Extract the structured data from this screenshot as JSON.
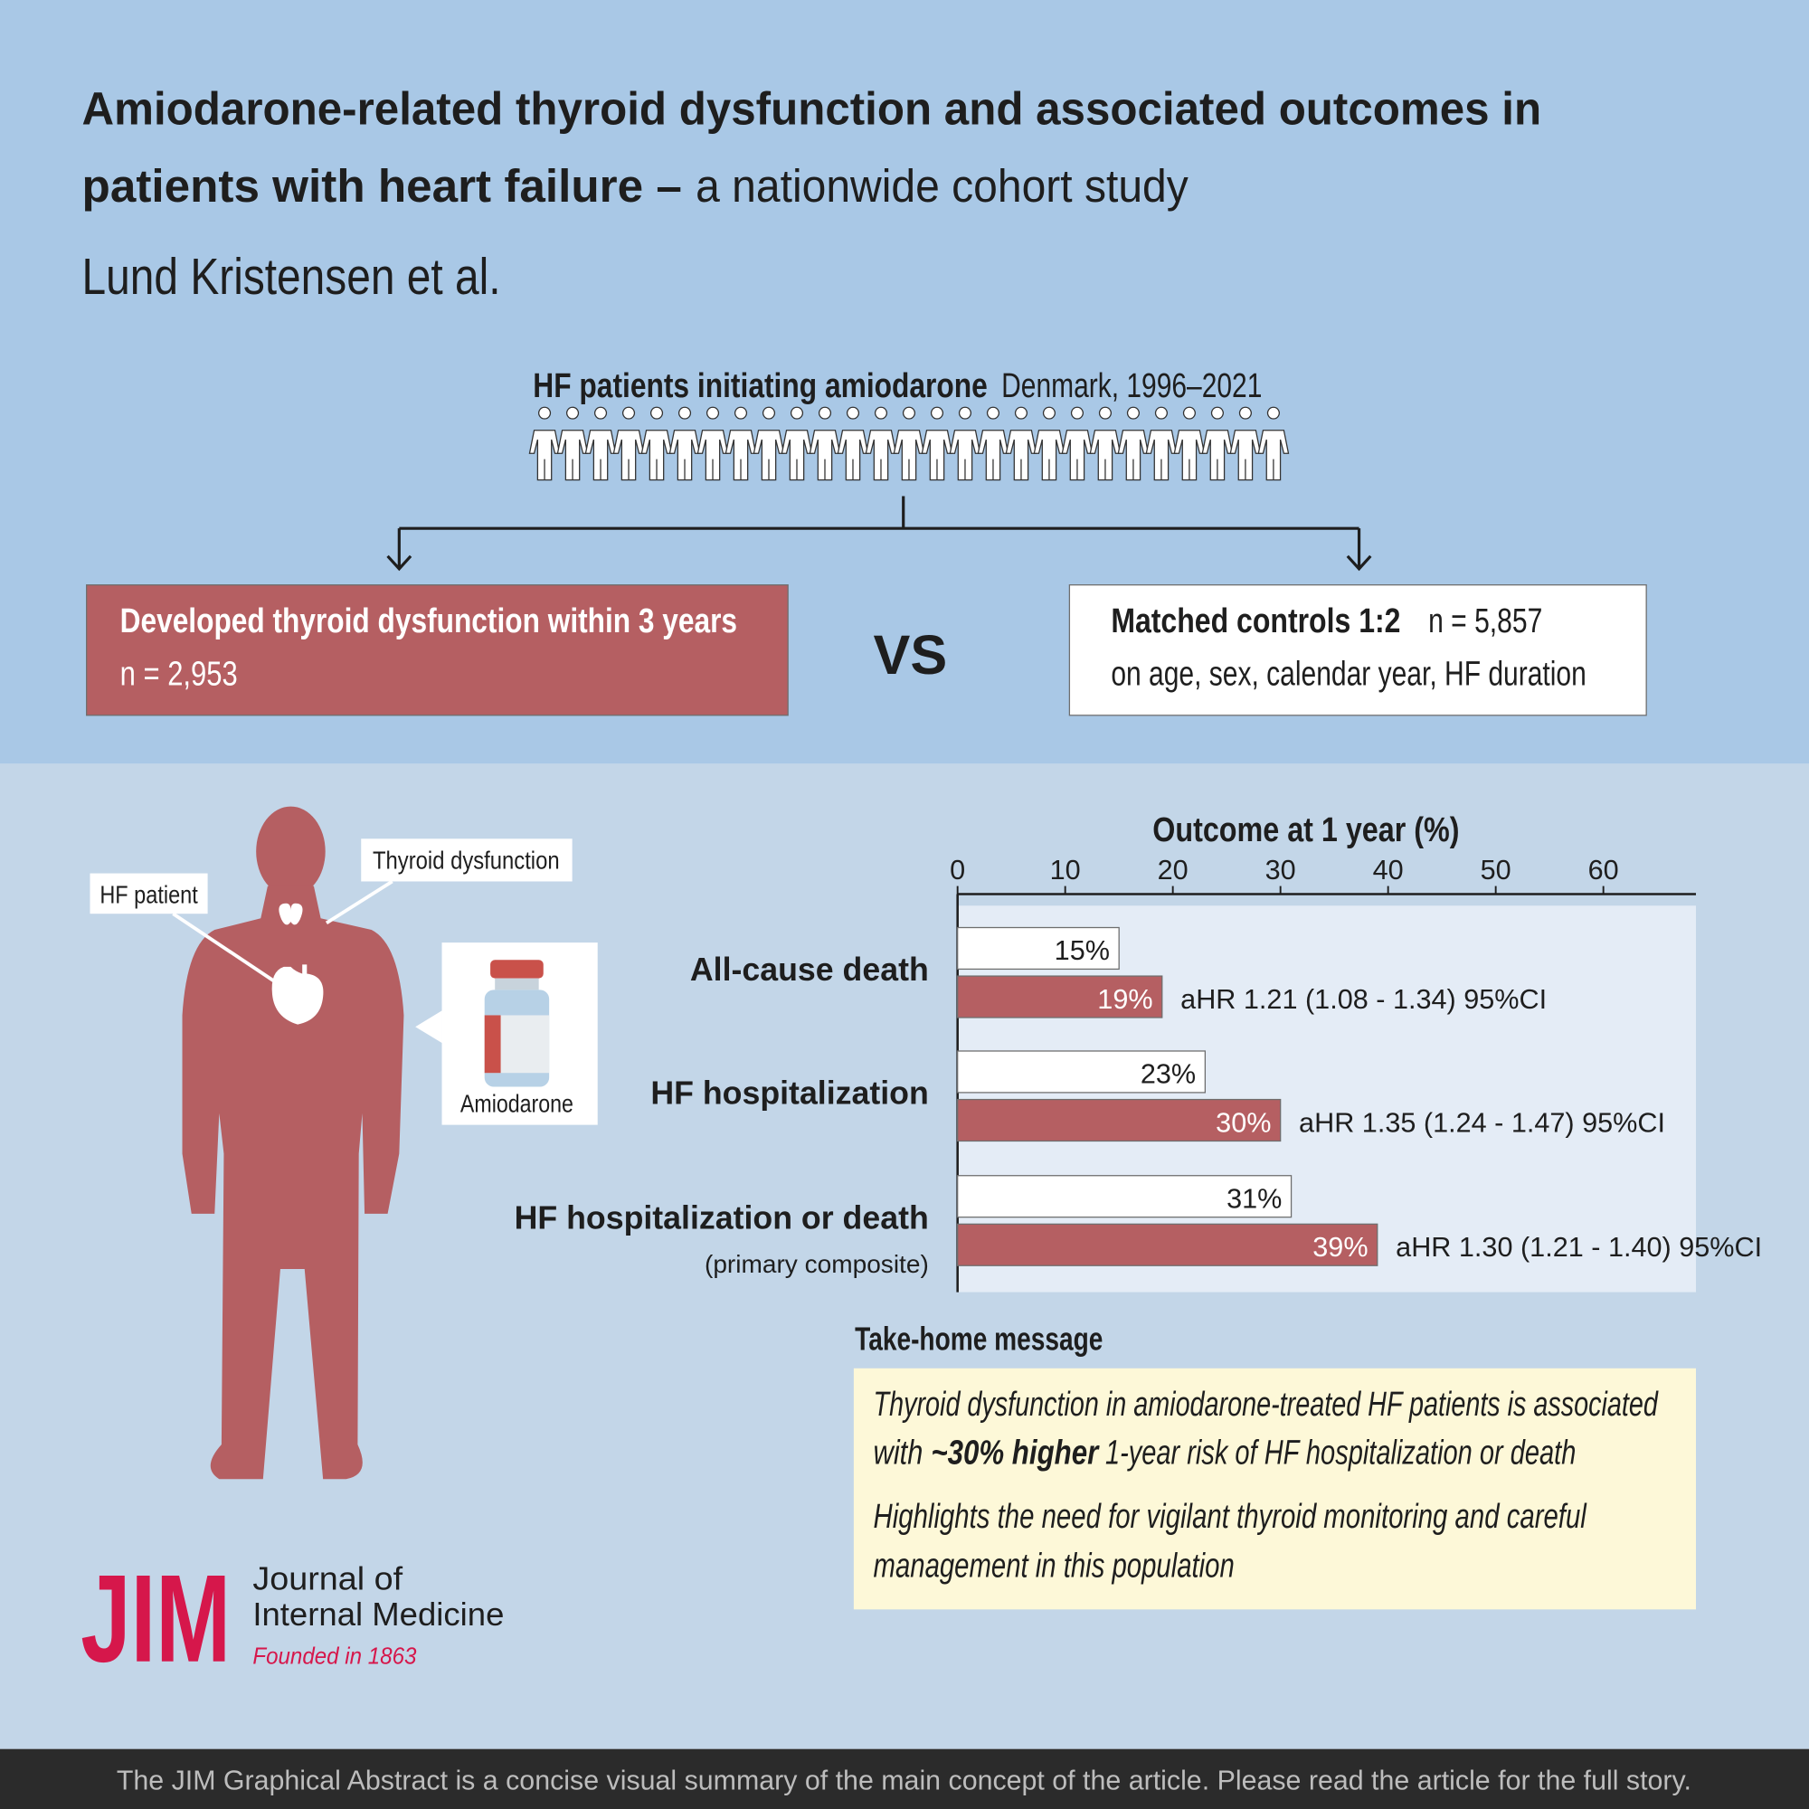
{
  "header": {
    "title_line1": "Amiodarone-related thyroid dysfunction and associated outcomes in",
    "title_line2_bold": "patients with heart failure –",
    "title_line2_light": "a nationwide cohort study",
    "authors": "Lund Kristensen et al."
  },
  "cohort": {
    "label": "HF patients initiating amiodarone",
    "detail": "Denmark, 1996–2021",
    "exposed": {
      "title": "Developed thyroid dysfunction within 3 years",
      "n": "n = 2,953"
    },
    "vs": "VS",
    "controls": {
      "title": "Matched controls 1:2",
      "n": "n = 5,857",
      "detail": "on age, sex, calendar year, HF duration"
    }
  },
  "illustration": {
    "hf_patient": "HF patient",
    "thyroid": "Thyroid dysfunction",
    "drug": "Amiodarone"
  },
  "chart_data": {
    "type": "bar",
    "orientation": "horizontal",
    "title": "Outcome at 1 year (%)",
    "categories": [
      "All-cause death",
      "HF hospitalization",
      "HF hospitalization or death"
    ],
    "category_notes": [
      null,
      null,
      "(primary composite)"
    ],
    "series": [
      {
        "color": "#ffffff",
        "values": [
          15,
          23,
          31
        ],
        "value_labels": [
          "15%",
          "23%",
          "31%"
        ]
      },
      {
        "color": "#b55f62",
        "values": [
          19,
          30,
          39
        ],
        "value_labels": [
          "19%",
          "30%",
          "39%"
        ]
      }
    ],
    "annotations": [
      "aHR 1.21 (1.08 - 1.34) 95%CI",
      "aHR 1.35 (1.24 - 1.47) 95%CI",
      "aHR 1.30 (1.21 - 1.40) 95%CI"
    ],
    "xlim": [
      0,
      68.6
    ],
    "xticks": [
      0,
      10,
      20,
      30,
      40,
      50,
      60
    ]
  },
  "take_home": {
    "title": "Take-home message",
    "line1": "Thyroid dysfunction in amiodarone-treated HF patients is associated",
    "line2_pre": "with",
    "line2_bold": "~30% higher",
    "line2_post": "1-year risk of HF hospitalization or death",
    "line3": "Highlights the need for vigilant thyroid monitoring and careful",
    "line4": "management in this population"
  },
  "journal": {
    "abbr": "JIM",
    "name_line1": "Journal of",
    "name_line2": "Internal Medicine",
    "founded": "Founded in 1863"
  },
  "footer": "The JIM Graphical Abstract is a concise visual summary of the main concept of the article. Please read the article for the full story."
}
